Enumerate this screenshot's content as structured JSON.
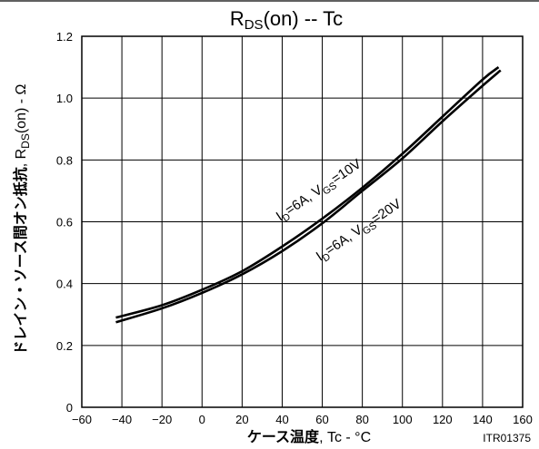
{
  "chart_data": {
    "type": "line",
    "title": {
      "main_prefix": "R",
      "main_sub": "DS",
      "main_suffix": "(on)  --  Tc"
    },
    "xlabel": {
      "jp": "ケース温度",
      "en": ", Tc - °C"
    },
    "ylabel": {
      "jp": "ドレイン・ソース間オン抵抗",
      "en_prefix": ", R",
      "en_sub": "DS",
      "en_suffix": "(on) - Ω"
    },
    "xlim": [
      -60,
      160
    ],
    "ylim": [
      0,
      1.2
    ],
    "x_ticks": [
      -60,
      -40,
      -20,
      0,
      20,
      40,
      60,
      80,
      100,
      120,
      140,
      160
    ],
    "x_tick_labels": [
      "−60",
      "−40",
      "−20",
      "0",
      "20",
      "40",
      "60",
      "80",
      "100",
      "120",
      "140",
      "160"
    ],
    "y_ticks": [
      0,
      0.2,
      0.4,
      0.6,
      0.8,
      1.0,
      1.2
    ],
    "y_tick_labels": [
      "0",
      "0.2",
      "0.4",
      "0.6",
      "0.8",
      "1.0",
      "1.2"
    ],
    "grid": true,
    "series": [
      {
        "label_parts": [
          "I",
          "D",
          "=6A, V",
          "GS",
          "=10V"
        ],
        "x": [
          -43,
          -20,
          0,
          20,
          40,
          60,
          80,
          100,
          120,
          140,
          148
        ],
        "y": [
          0.29,
          0.33,
          0.38,
          0.44,
          0.52,
          0.61,
          0.71,
          0.82,
          0.94,
          1.06,
          1.1
        ]
      },
      {
        "label_parts": [
          "I",
          "D",
          "=6A, V",
          "GS",
          "=20V"
        ],
        "x": [
          -43,
          -20,
          0,
          20,
          40,
          60,
          80,
          100,
          120,
          140,
          149
        ],
        "y": [
          0.275,
          0.32,
          0.37,
          0.43,
          0.505,
          0.595,
          0.7,
          0.805,
          0.925,
          1.04,
          1.09
        ]
      }
    ],
    "figure_code": "ITR01375"
  }
}
